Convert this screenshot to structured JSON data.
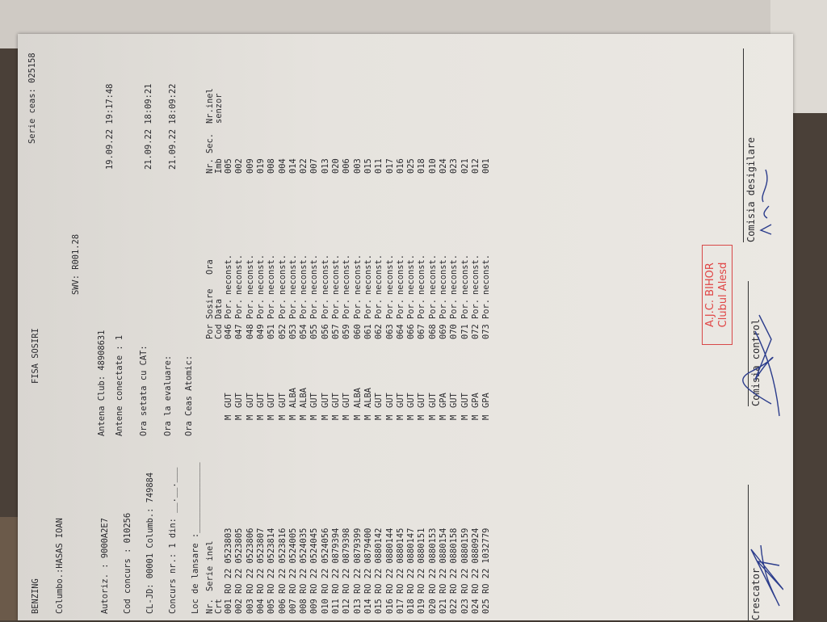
{
  "header": {
    "brand": "BENZING",
    "title": "FISA SOSIRI",
    "serie_ceas": "Serie ceas: 025158",
    "columbofil": "Columbo.:HASAS IOAN",
    "swv": "SWV: R001.28",
    "autoriz": "Autoriz. : 9000A2E7",
    "antena_club": "Antena Club: 48908631",
    "antene_conectate": "Antene conectate : 1",
    "cod_concurs": "Cod concurs : 010256",
    "cl_jd": "CL-JD: 00001 Columb.: 749884",
    "ora_setata": "Ora setata cu CAT:",
    "concurs_nr": "Concurs nr.: 1 din: __.__.___",
    "ora_evaluare": "Ora la evaluare:",
    "loc_lansare": "Loc de lansare :______________",
    "ora_atomic": "Ora Ceas Atomic:",
    "date_1": "19.09.22 19:17:48",
    "date_2": "21.09.22 18:09:21",
    "date_3": "21.09.22 18:09:22"
  },
  "table": {
    "headers_1": {
      "nr": "Nr.",
      "serie": "Serie inel",
      "por": "Por Sosire",
      "ora": "Ora",
      "sec": "Nr. Sec.",
      "inel": "Nr.inel"
    },
    "headers_2": {
      "nr": "Crt",
      "por": "Cod Data",
      "sec": "Imb",
      "inel": "senzor"
    },
    "rows": [
      {
        "nr": "001",
        "serie": "RO 22 0523803",
        "sex": "M",
        "culoare": "GUT",
        "cod": "046",
        "data": "Por.",
        "ora": "neconst.",
        "imb": "005"
      },
      {
        "nr": "002",
        "serie": "RO 22 0523805",
        "sex": "M",
        "culoare": "GUT",
        "cod": "047",
        "data": "Por.",
        "ora": "neconst.",
        "imb": "002"
      },
      {
        "nr": "003",
        "serie": "RO 22 0523806",
        "sex": "M",
        "culoare": "GUT",
        "cod": "048",
        "data": "Por.",
        "ora": "neconst.",
        "imb": "009"
      },
      {
        "nr": "004",
        "serie": "RO 22 0523807",
        "sex": "M",
        "culoare": "GUT",
        "cod": "049",
        "data": "Por.",
        "ora": "neconst.",
        "imb": "019"
      },
      {
        "nr": "005",
        "serie": "RO 22 0523814",
        "sex": "M",
        "culoare": "GUT",
        "cod": "051",
        "data": "Por.",
        "ora": "neconst.",
        "imb": "008"
      },
      {
        "nr": "006",
        "serie": "RO 22 0523816",
        "sex": "M",
        "culoare": "GUT",
        "cod": "052",
        "data": "Por.",
        "ora": "neconst.",
        "imb": "004"
      },
      {
        "nr": "007",
        "serie": "RO 22 0524005",
        "sex": "M",
        "culoare": "ALBA",
        "cod": "053",
        "data": "Por.",
        "ora": "neconst.",
        "imb": "014"
      },
      {
        "nr": "008",
        "serie": "RO 22 0524035",
        "sex": "M",
        "culoare": "ALBA",
        "cod": "054",
        "data": "Por.",
        "ora": "neconst.",
        "imb": "022"
      },
      {
        "nr": "009",
        "serie": "RO 22 0524045",
        "sex": "M",
        "culoare": "GUT",
        "cod": "055",
        "data": "Por.",
        "ora": "neconst.",
        "imb": "007"
      },
      {
        "nr": "010",
        "serie": "RO 22 0524056",
        "sex": "M",
        "culoare": "GUT",
        "cod": "056",
        "data": "Por.",
        "ora": "neconst.",
        "imb": "013"
      },
      {
        "nr": "011",
        "serie": "RO 22 0879394",
        "sex": "M",
        "culoare": "GUT",
        "cod": "057",
        "data": "Por.",
        "ora": "neconst.",
        "imb": "020"
      },
      {
        "nr": "012",
        "serie": "RO 22 0879398",
        "sex": "M",
        "culoare": "GUT",
        "cod": "059",
        "data": "Por.",
        "ora": "neconst.",
        "imb": "006"
      },
      {
        "nr": "013",
        "serie": "RO 22 0879399",
        "sex": "M",
        "culoare": "ALBA",
        "cod": "060",
        "data": "Por.",
        "ora": "neconst.",
        "imb": "003"
      },
      {
        "nr": "014",
        "serie": "RO 22 0879400",
        "sex": "M",
        "culoare": "ALBA",
        "cod": "061",
        "data": "Por.",
        "ora": "neconst.",
        "imb": "015"
      },
      {
        "nr": "015",
        "serie": "RO 22 0880142",
        "sex": "M",
        "culoare": "GUT",
        "cod": "062",
        "data": "Por.",
        "ora": "neconst.",
        "imb": "011"
      },
      {
        "nr": "016",
        "serie": "RO 22 0880144",
        "sex": "M",
        "culoare": "GUT",
        "cod": "063",
        "data": "Por.",
        "ora": "neconst.",
        "imb": "017"
      },
      {
        "nr": "017",
        "serie": "RO 22 0880145",
        "sex": "M",
        "culoare": "GUT",
        "cod": "064",
        "data": "Por.",
        "ora": "neconst.",
        "imb": "016"
      },
      {
        "nr": "018",
        "serie": "RO 22 0880147",
        "sex": "M",
        "culoare": "GUT",
        "cod": "066",
        "data": "Por.",
        "ora": "neconst.",
        "imb": "025"
      },
      {
        "nr": "019",
        "serie": "RO 22 0880151",
        "sex": "M",
        "culoare": "GUT",
        "cod": "067",
        "data": "Por.",
        "ora": "neconst.",
        "imb": "018"
      },
      {
        "nr": "020",
        "serie": "RO 22 0880153",
        "sex": "M",
        "culoare": "GUT",
        "cod": "068",
        "data": "Por.",
        "ora": "neconst.",
        "imb": "010"
      },
      {
        "nr": "021",
        "serie": "RO 22 0880154",
        "sex": "M",
        "culoare": "GPA",
        "cod": "069",
        "data": "Por.",
        "ora": "neconst.",
        "imb": "024"
      },
      {
        "nr": "022",
        "serie": "RO 22 0880158",
        "sex": "M",
        "culoare": "GUT",
        "cod": "070",
        "data": "Por.",
        "ora": "neconst.",
        "imb": "023"
      },
      {
        "nr": "023",
        "serie": "RO 22 0880159",
        "sex": "M",
        "culoare": "GUT",
        "cod": "071",
        "data": "Por.",
        "ora": "neconst.",
        "imb": "021"
      },
      {
        "nr": "024",
        "serie": "RO 22 0880924",
        "sex": "M",
        "culoare": "GPA",
        "cod": "072",
        "data": "Por.",
        "ora": "neconst.",
        "imb": "012"
      },
      {
        "nr": "025",
        "serie": "RO 22 1032779",
        "sex": "M",
        "culoare": "GPA",
        "cod": "073",
        "data": "Por.",
        "ora": "neconst.",
        "imb": "001"
      }
    ]
  },
  "stamp": {
    "line1": "A.J.C. BIHOR",
    "line2": "Clubul Alesd",
    "color": "#e04545"
  },
  "signatures": {
    "crescator": "Crescator",
    "comisia_control": "Comisia control",
    "comisia_desigilare": "Comisia desigilare",
    "ink_color": "#2c3d8c"
  }
}
